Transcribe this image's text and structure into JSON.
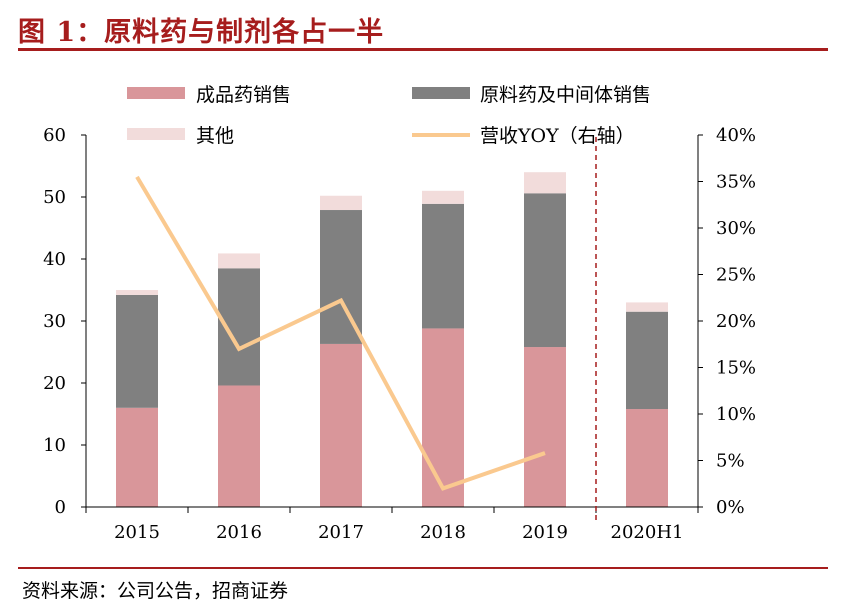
{
  "figure": {
    "title": "图 1：原料药与制剂各占一半",
    "source": "资料来源：公司公告，招商证券"
  },
  "chart_data": {
    "type": "bar",
    "stacked": true,
    "categories": [
      "2015",
      "2016",
      "2017",
      "2018",
      "2019",
      "2020H1"
    ],
    "series": [
      {
        "name": "成品药销售",
        "color": "#d9969a",
        "values": [
          16,
          19.6,
          26.3,
          28.8,
          25.8,
          15.8
        ]
      },
      {
        "name": "原料药及中间体销售",
        "color": "#808080",
        "values": [
          18.2,
          18.9,
          21.6,
          20.1,
          24.8,
          15.7
        ]
      },
      {
        "name": "其他",
        "color": "#f2dcdb",
        "values": [
          0.8,
          2.4,
          2.3,
          2.1,
          3.4,
          1.5
        ]
      }
    ],
    "line_series": {
      "name": "营收YOY（右轴）",
      "color": "#fac98f",
      "axis": "right",
      "values": [
        35.5,
        17,
        22.2,
        2,
        5.8,
        null
      ]
    },
    "y_left": {
      "min": 0,
      "max": 60,
      "ticks": [
        "0",
        "10",
        "20",
        "30",
        "40",
        "50",
        "60"
      ]
    },
    "y_right": {
      "min": 0,
      "max": 40,
      "ticks": [
        "0%",
        "5%",
        "10%",
        "15%",
        "20%",
        "25%",
        "30%",
        "35%",
        "40%"
      ]
    },
    "divider": "between 2019 and 2020H1 (dashed)",
    "legend_position": "top"
  }
}
